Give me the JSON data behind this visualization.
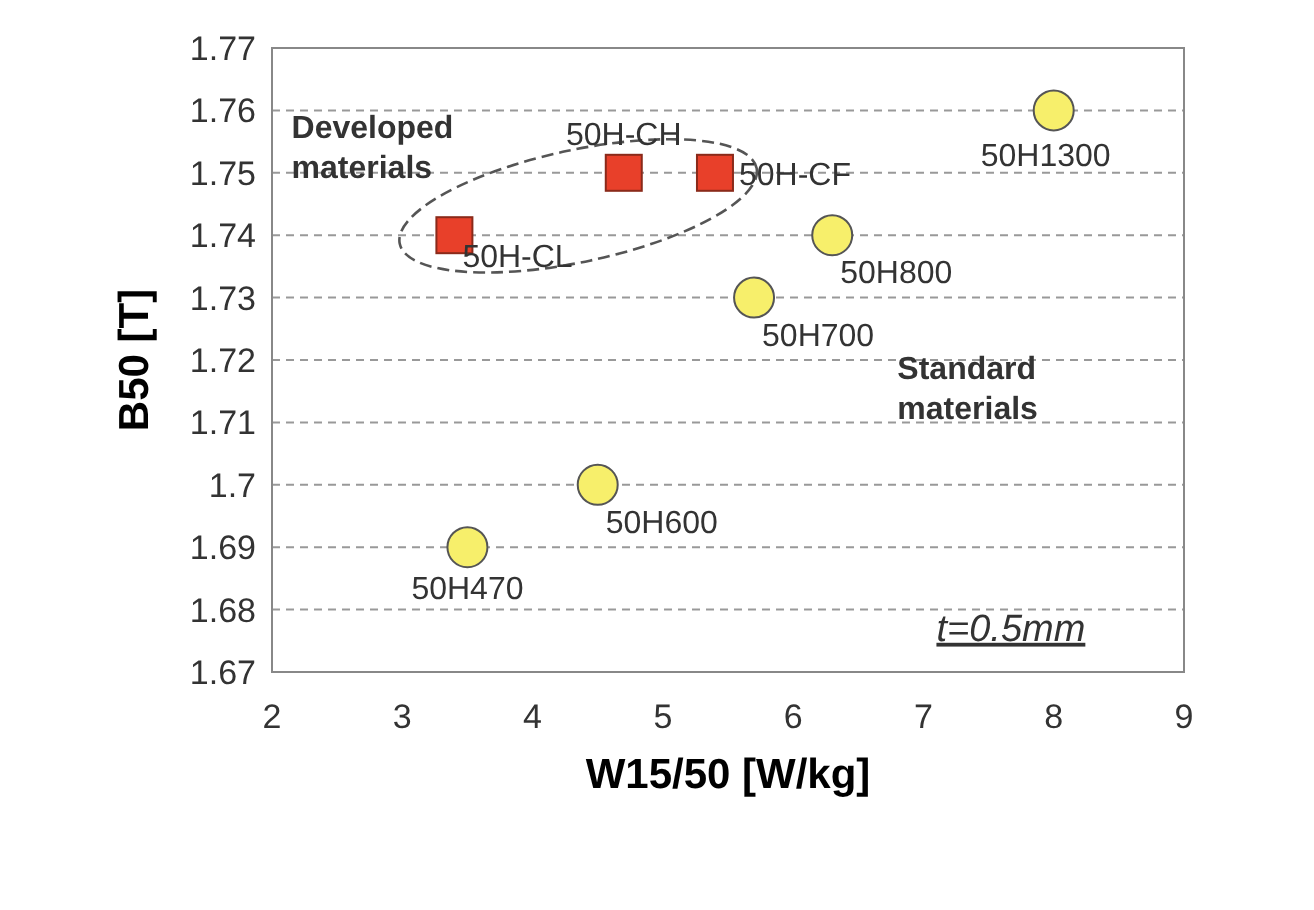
{
  "chart_data": {
    "type": "scatter",
    "xlabel": "W15/50 [W/kg]",
    "ylabel": "B50 [T]",
    "xlim": [
      2,
      9
    ],
    "xticks": [
      2,
      3,
      4,
      5,
      6,
      7,
      8,
      9
    ],
    "ylim": [
      1.67,
      1.77
    ],
    "yticks": [
      1.67,
      1.68,
      1.69,
      1.7,
      1.71,
      1.72,
      1.73,
      1.74,
      1.75,
      1.76,
      1.77
    ],
    "grid": "y",
    "series": [
      {
        "color": "#e8402a",
        "marker": "square",
        "x": [
          3.4,
          4.7,
          5.4
        ],
        "values": [
          1.74,
          1.75,
          1.75
        ]
      },
      {
        "color": "#f7ef6b",
        "marker": "circle",
        "x": [
          3.5,
          4.5,
          5.7,
          6.3,
          8
        ],
        "values": [
          1.69,
          1.7,
          1.73,
          1.74,
          1.76
        ]
      }
    ],
    "annotations": [
      {
        "text": "50H-CL",
        "x": 3.4,
        "y": 1.74
      },
      {
        "text": "50H-CH",
        "x": 4.7,
        "y": 1.75
      },
      {
        "text": "50H-CF",
        "x": 5.4,
        "y": 1.75
      },
      {
        "text": "50H470",
        "x": 3.5,
        "y": 1.69
      },
      {
        "text": "50H600",
        "x": 4.5,
        "y": 1.7
      },
      {
        "text": "50H700",
        "x": 5.7,
        "y": 1.73
      },
      {
        "text": "50H800",
        "x": 6.3,
        "y": 1.74
      },
      {
        "text": "50H1300",
        "x": 8,
        "y": 1.76
      },
      "Developed\nmaterials",
      "Standard\nmaterials",
      "t=0.5mm"
    ]
  }
}
